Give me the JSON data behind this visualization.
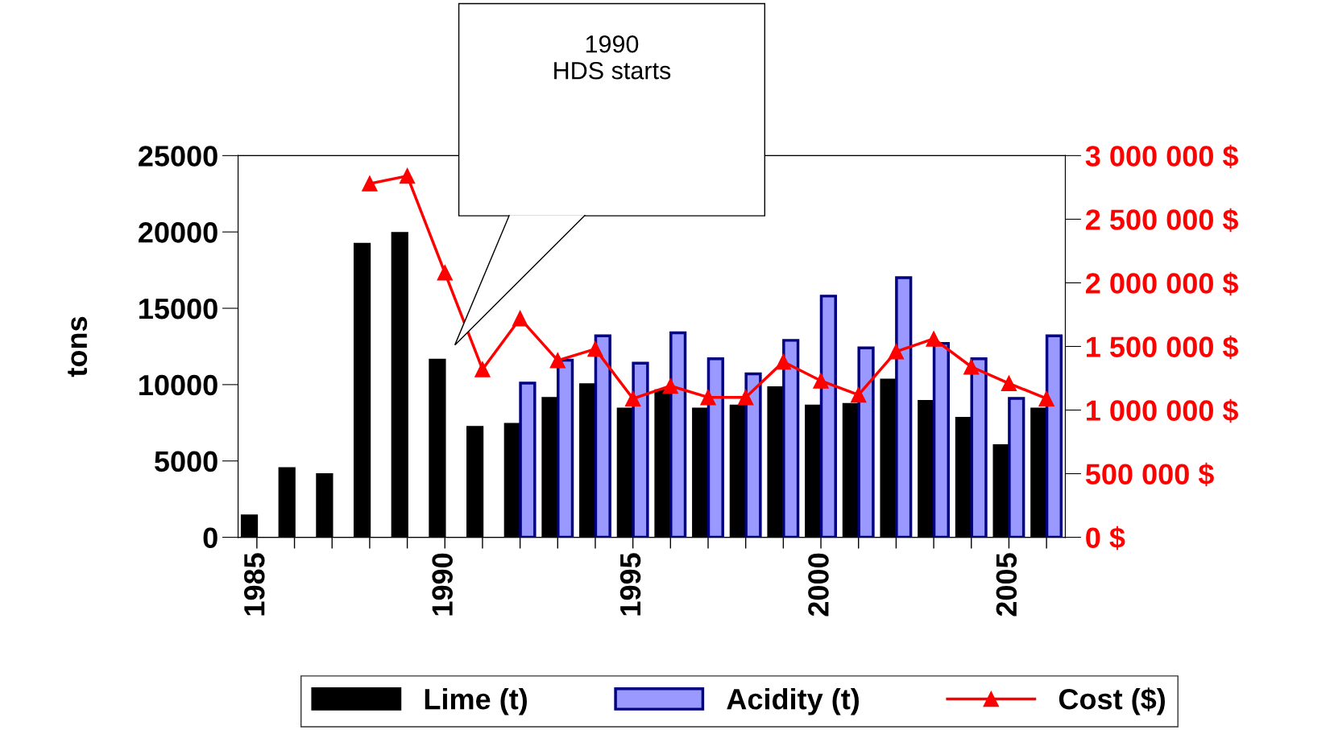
{
  "chart_data": {
    "type": "bar",
    "categories": [
      "1985",
      null,
      null,
      null,
      null,
      "1990",
      null,
      null,
      null,
      null,
      "1995",
      null,
      null,
      null,
      null,
      "2000",
      null,
      null,
      null,
      null,
      "2005",
      null
    ],
    "series": [
      {
        "name": "Lime (t)",
        "color": "#000000",
        "values": [
          1400,
          4500,
          4100,
          19200,
          19900,
          11600,
          7200,
          7400,
          9100,
          10000,
          8400,
          9600,
          8400,
          8600,
          9800,
          8600,
          8700,
          10300,
          8900,
          7800,
          6000,
          8400
        ]
      },
      {
        "name": "Acidity (t)",
        "color": "#9999ff",
        "values": [
          null,
          null,
          null,
          null,
          null,
          null,
          null,
          10100,
          11600,
          13200,
          11400,
          13400,
          11700,
          10700,
          12900,
          15800,
          12400,
          17000,
          12700,
          11700,
          9100,
          13200
        ]
      },
      {
        "name": "Cost ($)",
        "type": "line",
        "axis": "y2",
        "color": "#ff0000",
        "marker": "triangle",
        "values": [
          null,
          null,
          null,
          2780000,
          2840000,
          2080000,
          1320000,
          1720000,
          1390000,
          1480000,
          1090000,
          1190000,
          1100000,
          1100000,
          1380000,
          1230000,
          1120000,
          1460000,
          1560000,
          1340000,
          1210000,
          1090000
        ]
      }
    ],
    "ylabel": "tons",
    "ylim": [
      0,
      25000
    ],
    "yticks": [
      0,
      5000,
      10000,
      15000,
      20000,
      25000
    ],
    "y2lim": [
      0,
      3000000
    ],
    "y2ticks": [
      {
        "value": 0,
        "label": "0 $"
      },
      {
        "value": 500000,
        "label": "500 000 $"
      },
      {
        "value": 1000000,
        "label": "1 000 000 $"
      },
      {
        "value": 1500000,
        "label": "1 500 000 $"
      },
      {
        "value": 2000000,
        "label": "2 000 000 $"
      },
      {
        "value": 2500000,
        "label": "2 500 000 $"
      },
      {
        "value": 3000000,
        "label": "3 000 000 $"
      }
    ],
    "annotations": [
      "1990\nHDS starts"
    ],
    "legend": "bottom",
    "grid": false
  }
}
